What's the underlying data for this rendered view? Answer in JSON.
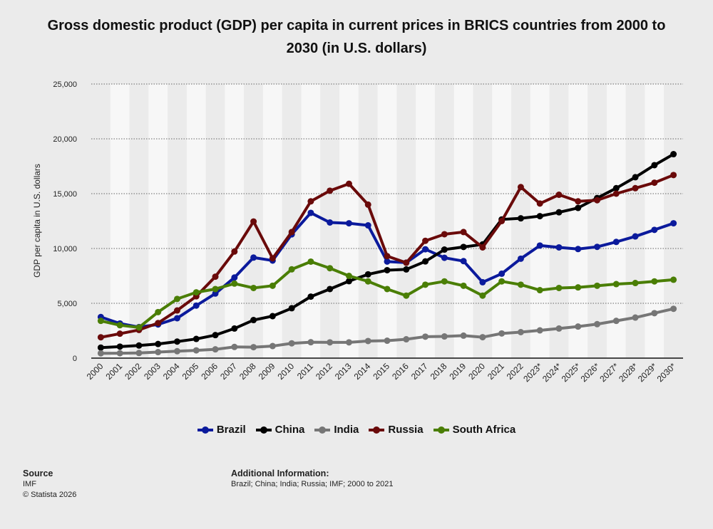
{
  "chart_data": {
    "type": "line",
    "title": "Gross domestic product (GDP) per capita in current prices in BRICS countries from 2000 to 2030 (in U.S. dollars)",
    "xlabel": "",
    "ylabel": "GDP per capita in U.S. dollars",
    "ylim": [
      0,
      25000
    ],
    "yticks": [
      "0",
      "5,000",
      "10,000",
      "15,000",
      "20,000",
      "25,000"
    ],
    "ytick_values": [
      0,
      5000,
      10000,
      15000,
      20000,
      25000
    ],
    "grid": true,
    "legend": "bottom",
    "categories": [
      "2000",
      "2001",
      "2002",
      "2003",
      "2004",
      "2005",
      "2006",
      "2007",
      "2008",
      "2009",
      "2010",
      "2011",
      "2012",
      "2013",
      "2014",
      "2015",
      "2016",
      "2017",
      "2018",
      "2019",
      "2020",
      "2021",
      "2022",
      "2023*",
      "2024*",
      "2025*",
      "2026*",
      "2027*",
      "2028*",
      "2029*",
      "2030*"
    ],
    "series": [
      {
        "name": "Brazil",
        "color": "#0b1a9c",
        "values": [
          3750,
          3160,
          2830,
          3070,
          3640,
          4790,
          5890,
          7350,
          9170,
          8900,
          11290,
          13250,
          12370,
          12300,
          12110,
          8810,
          8710,
          9930,
          9150,
          8850,
          6920,
          7700,
          9070,
          10270,
          10100,
          9950,
          10150,
          10600,
          11100,
          11700,
          12300
        ]
      },
      {
        "name": "China",
        "color": "#000000",
        "values": [
          960,
          1050,
          1150,
          1290,
          1510,
          1750,
          2100,
          2700,
          3470,
          3830,
          4550,
          5610,
          6300,
          7020,
          7640,
          8020,
          8090,
          8820,
          9900,
          10140,
          10370,
          12650,
          12750,
          12950,
          13300,
          13700,
          14600,
          15500,
          16500,
          17600,
          18600
        ]
      },
      {
        "name": "India",
        "color": "#767676",
        "values": [
          440,
          450,
          470,
          550,
          630,
          710,
          800,
          1020,
          1000,
          1100,
          1350,
          1450,
          1440,
          1440,
          1560,
          1590,
          1720,
          1960,
          1980,
          2050,
          1910,
          2250,
          2370,
          2530,
          2700,
          2880,
          3100,
          3400,
          3700,
          4100,
          4500
        ]
      },
      {
        "name": "Russia",
        "color": "#6a0a0a",
        "values": [
          1900,
          2230,
          2570,
          3200,
          4350,
          5640,
          7430,
          9720,
          12460,
          9100,
          11500,
          14300,
          15270,
          15900,
          14000,
          9300,
          8700,
          10700,
          11300,
          11500,
          10100,
          12500,
          15600,
          14100,
          14900,
          14300,
          14400,
          15000,
          15500,
          16000,
          16700
        ]
      },
      {
        "name": "South Africa",
        "color": "#4a7e05",
        "values": [
          3400,
          3000,
          2800,
          4200,
          5400,
          6000,
          6300,
          6800,
          6400,
          6600,
          8100,
          8800,
          8200,
          7500,
          7000,
          6300,
          5700,
          6700,
          7000,
          6600,
          5700,
          7000,
          6700,
          6200,
          6400,
          6450,
          6600,
          6750,
          6850,
          7000,
          7150
        ]
      }
    ]
  },
  "footer": {
    "source_label": "Source",
    "source": "IMF",
    "copyright": "© Statista 2026",
    "info_label": "Additional Information:",
    "info": "Brazil; China; India; Russia; IMF; 2000 to 2021"
  }
}
